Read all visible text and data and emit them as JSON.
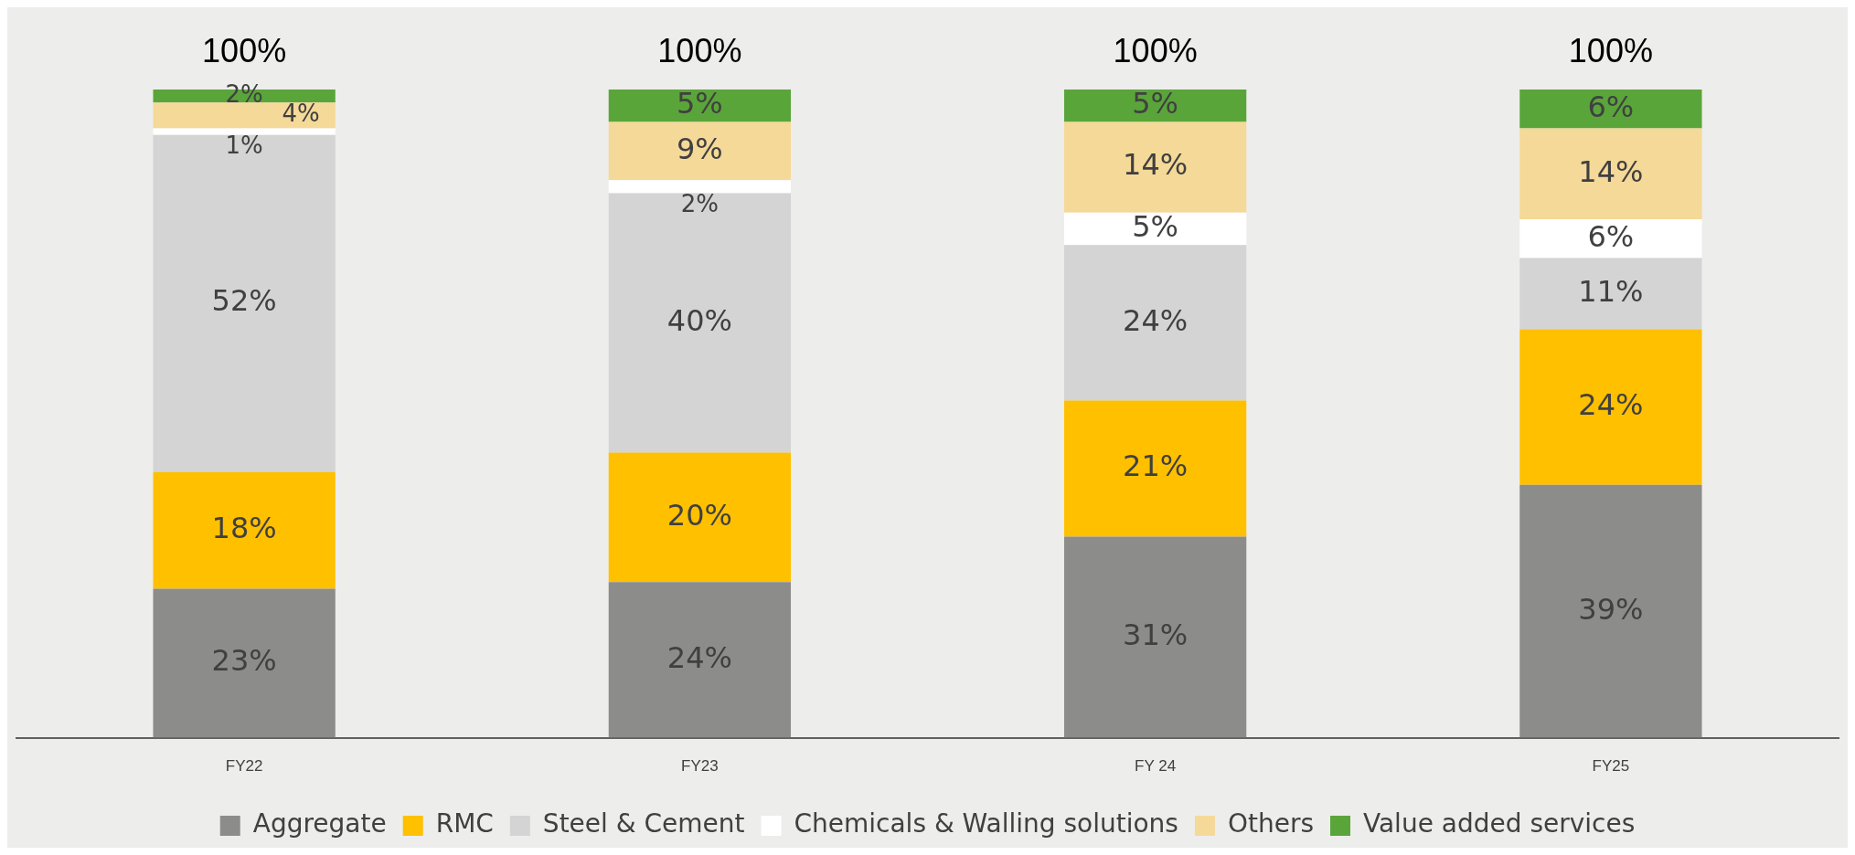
{
  "chart_data": {
    "type": "bar",
    "stacked": true,
    "categories": [
      "FY22",
      "FY23",
      "FY 24",
      "FY25"
    ],
    "series": [
      {
        "name": "Aggregate",
        "color": "#8c8c8a",
        "values": [
          23,
          24,
          31,
          39
        ],
        "value_labels": [
          "23%",
          "24%",
          "31%",
          "39%"
        ]
      },
      {
        "name": "RMC",
        "color": "#ffc000",
        "values": [
          18,
          20,
          21,
          24
        ],
        "value_labels": [
          "18%",
          "20%",
          "21%",
          "24%"
        ]
      },
      {
        "name": "Steel & Cement",
        "color": "#d4d4d4",
        "values": [
          52,
          40,
          24,
          11
        ],
        "value_labels": [
          "52%",
          "40%",
          "24%",
          "11%"
        ]
      },
      {
        "name": "Chemicals & Walling solutions",
        "color": "#ffffff",
        "values": [
          1,
          2,
          5,
          6
        ],
        "value_labels": [
          "1%",
          "2%",
          "5%",
          "6%"
        ]
      },
      {
        "name": "Others",
        "color": "#f5d998",
        "values": [
          4,
          9,
          14,
          14
        ],
        "value_labels": [
          "4%",
          "9%",
          "14%",
          "14%"
        ]
      },
      {
        "name": "Value added services",
        "color": "#5aa53a",
        "values": [
          2,
          5,
          5,
          6
        ],
        "value_labels": [
          "2%",
          "5%",
          "5%",
          "6%"
        ]
      }
    ],
    "totals": [
      "100%",
      "100%",
      "100%",
      "100%"
    ],
    "legend": "bottom",
    "grid": false
  }
}
